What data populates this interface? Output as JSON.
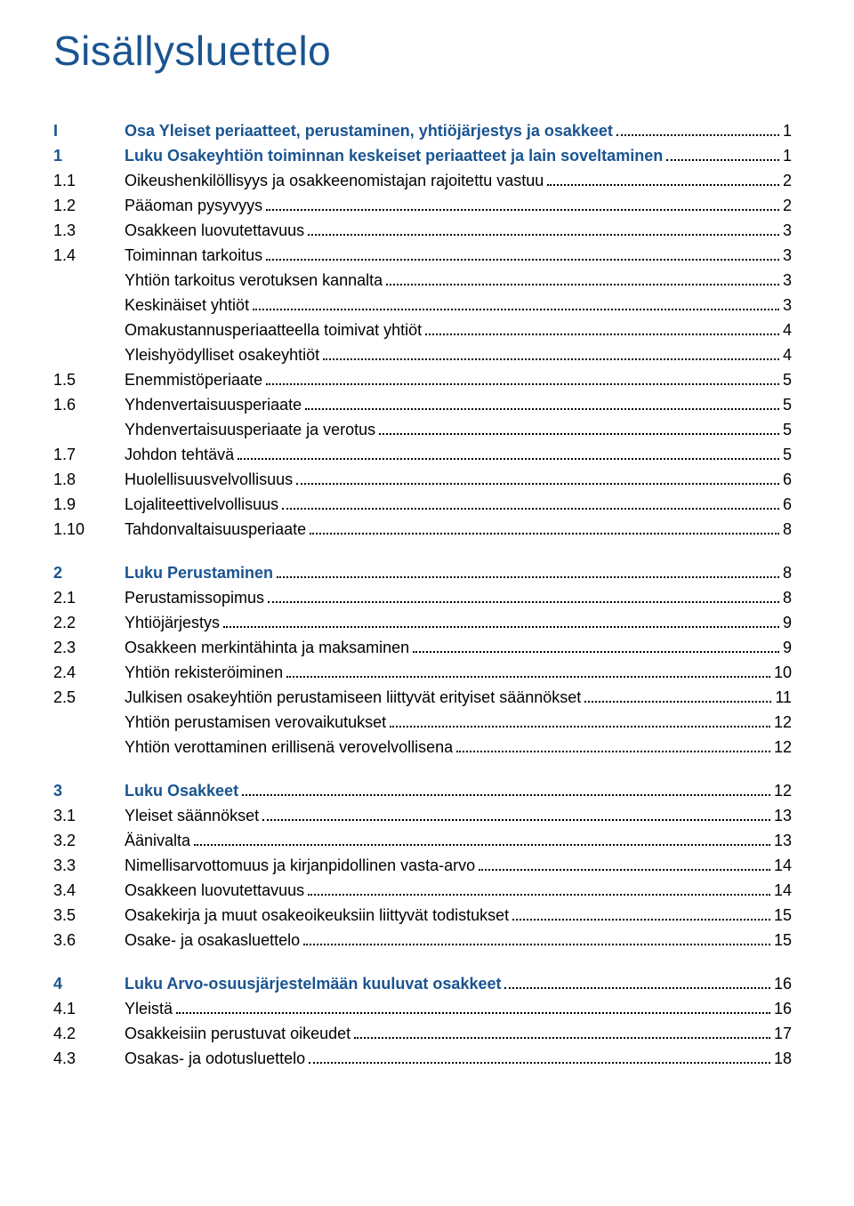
{
  "title": "Sisällysluettelo",
  "colors": {
    "blue": "#1a5490",
    "text": "#000000",
    "bg": "#ffffff"
  },
  "sections": [
    {
      "rows": [
        {
          "num": "I",
          "label": "Osa Yleiset periaatteet, perustaminen, yhtiöjärjestys ja osakkeet",
          "page": "1",
          "blue": true
        },
        {
          "num": "1",
          "label": "Luku Osakeyhtiön toiminnan keskeiset periaatteet ja lain soveltaminen",
          "page": "1",
          "blue": true
        },
        {
          "num": "1.1",
          "label": "Oikeushenkilöllisyys ja osakkeenomistajan rajoitettu vastuu",
          "page": "2"
        },
        {
          "num": "1.2",
          "label": "Pääoman pysyvyys",
          "page": "2"
        },
        {
          "num": "1.3",
          "label": "Osakkeen luovutettavuus",
          "page": "3"
        },
        {
          "num": "1.4",
          "label": "Toiminnan tarkoitus",
          "page": "3"
        },
        {
          "num": "",
          "label": "Yhtiön tarkoitus verotuksen kannalta",
          "page": "3"
        },
        {
          "num": "",
          "label": "Keskinäiset yhtiöt",
          "page": "3"
        },
        {
          "num": "",
          "label": "Omakustannusperiaatteella toimivat yhtiöt",
          "page": "4"
        },
        {
          "num": "",
          "label": "Yleishyödylliset osakeyhtiöt",
          "page": "4"
        },
        {
          "num": "1.5",
          "label": "Enemmistöperiaate",
          "page": "5"
        },
        {
          "num": "1.6",
          "label": "Yhdenvertaisuusperiaate",
          "page": "5"
        },
        {
          "num": "",
          "label": "Yhdenvertaisuusperiaate ja verotus",
          "page": "5"
        },
        {
          "num": "1.7",
          "label": "Johdon tehtävä",
          "page": "5"
        },
        {
          "num": "1.8",
          "label": "Huolellisuusvelvollisuus",
          "page": "6"
        },
        {
          "num": "1.9",
          "label": "Lojaliteettivelvollisuus",
          "page": "6"
        },
        {
          "num": "1.10",
          "label": "Tahdonvaltaisuusperiaate",
          "page": "8"
        }
      ]
    },
    {
      "rows": [
        {
          "num": "2",
          "label": "Luku Perustaminen",
          "page": "8",
          "blue": true
        },
        {
          "num": "2.1",
          "label": "Perustamissopimus",
          "page": "8"
        },
        {
          "num": "2.2",
          "label": "Yhtiöjärjestys",
          "page": "9"
        },
        {
          "num": "2.3",
          "label": "Osakkeen merkintähinta ja maksaminen",
          "page": "9"
        },
        {
          "num": "2.4",
          "label": "Yhtiön rekisteröiminen",
          "page": "10"
        },
        {
          "num": "2.5",
          "label": "Julkisen osakeyhtiön perustamiseen liittyvät erityiset säännökset",
          "page": "11"
        },
        {
          "num": "",
          "label": "Yhtiön perustamisen verovaikutukset",
          "page": "12"
        },
        {
          "num": "",
          "label": "Yhtiön verottaminen erillisenä verovelvollisena",
          "page": "12"
        }
      ]
    },
    {
      "rows": [
        {
          "num": "3",
          "label": "Luku Osakkeet",
          "page": "12",
          "blue": true
        },
        {
          "num": "3.1",
          "label": "Yleiset säännökset",
          "page": "13"
        },
        {
          "num": "3.2",
          "label": "Äänivalta",
          "page": "13"
        },
        {
          "num": "3.3",
          "label": "Nimellisarvottomuus ja kirjanpidollinen vasta-arvo",
          "page": "14"
        },
        {
          "num": "3.4",
          "label": "Osakkeen luovutettavuus",
          "page": "14"
        },
        {
          "num": "3.5",
          "label": "Osakekirja ja muut osakeoikeuksiin liittyvät todistukset",
          "page": "15"
        },
        {
          "num": "3.6",
          "label": "Osake- ja osakasluettelo",
          "page": "15"
        }
      ]
    },
    {
      "rows": [
        {
          "num": "4",
          "label": "Luku Arvo-osuusjärjestelmään kuuluvat osakkeet",
          "page": "16",
          "blue": true
        },
        {
          "num": "4.1",
          "label": "Yleistä",
          "page": "16"
        },
        {
          "num": "4.2",
          "label": "Osakkeisiin perustuvat oikeudet",
          "page": "17"
        },
        {
          "num": "4.3",
          "label": "Osakas- ja odotusluettelo",
          "page": "18"
        }
      ]
    }
  ]
}
